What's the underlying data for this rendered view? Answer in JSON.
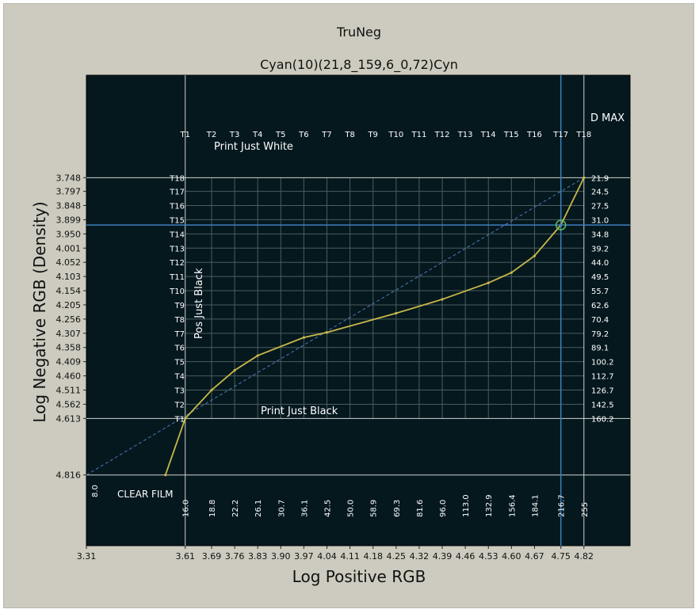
{
  "chart_data": {
    "type": "line",
    "suptitle": "TruNeg",
    "title": "Cyan(10)(21,8_159,6_0,72)Cyn",
    "xlabel": "Log Positive RGB",
    "ylabel": "Log Negative RGB (Density)",
    "xlim": [
      3.31,
      4.96
    ],
    "ylim": [
      5.07,
      3.38
    ],
    "x_ticks": [
      3.31,
      3.61,
      3.69,
      3.76,
      3.83,
      3.9,
      3.97,
      4.04,
      4.11,
      4.18,
      4.25,
      4.32,
      4.39,
      4.46,
      4.53,
      4.6,
      4.67,
      4.75,
      4.82
    ],
    "x_tick_labels": [
      "3.31",
      "3.61",
      "3.69",
      "3.76",
      "3.83",
      "3.90",
      "3.97",
      "4.04",
      "4.11",
      "4.18",
      "4.25",
      "4.32",
      "4.39",
      "4.46",
      "4.53",
      "4.60",
      "4.67",
      "4.75",
      "4.82"
    ],
    "y_ticks": [
      3.748,
      3.797,
      3.848,
      3.899,
      3.95,
      4.001,
      4.052,
      4.103,
      4.154,
      4.205,
      4.256,
      4.307,
      4.358,
      4.409,
      4.46,
      4.511,
      4.562,
      4.613,
      4.816
    ],
    "y_tick_labels": [
      "3.748",
      "3.797",
      "3.848",
      "3.899",
      "3.950",
      "4.001",
      "4.052",
      "4.103",
      "4.154",
      "4.205",
      "4.256",
      "4.307",
      "4.358",
      "4.409",
      "4.460",
      "4.511",
      "4.562",
      "4.613",
      "4.816"
    ],
    "t_labels": [
      "T1",
      "T2",
      "T3",
      "T4",
      "T5",
      "T6",
      "T7",
      "T8",
      "T9",
      "T10",
      "T11",
      "T12",
      "T13",
      "T14",
      "T15",
      "T16",
      "T17",
      "T18"
    ],
    "left_t_labels": [
      "T18",
      "T17",
      "T16",
      "T15",
      "T14",
      "T13",
      "T12",
      "T11",
      "T10",
      "T9",
      "T8",
      "T7",
      "T6",
      "T5",
      "T4",
      "T3",
      "T2",
      "T1"
    ],
    "right_values": [
      "21.9",
      "24.5",
      "27.5",
      "31.0",
      "34.8",
      "39.2",
      "44.0",
      "49.5",
      "55.7",
      "62.6",
      "70.4",
      "79.2",
      "89.1",
      "100.2",
      "112.7",
      "126.7",
      "142.5",
      "160.2"
    ],
    "bottom_values": [
      "16.0",
      "18.8",
      "22.2",
      "26.1",
      "30.7",
      "36.1",
      "42.5",
      "50.0",
      "58.9",
      "69.3",
      "81.6",
      "96.0",
      "113.0",
      "132.9",
      "156.4",
      "184.1",
      "216.7",
      "255"
    ],
    "clear_film_value": "8.0",
    "curve": {
      "name": "Cyan",
      "color": "#c8b84a",
      "x": [
        3.55,
        3.61,
        3.69,
        3.76,
        3.83,
        3.97,
        4.04,
        4.25,
        4.39,
        4.53,
        4.6,
        4.67,
        4.75,
        4.82
      ],
      "y": [
        4.816,
        4.613,
        4.511,
        4.44,
        4.387,
        4.322,
        4.304,
        4.235,
        4.185,
        4.126,
        4.089,
        4.029,
        3.918,
        3.748
      ]
    },
    "diagonal": {
      "x": [
        3.31,
        4.82
      ],
      "y": [
        4.816,
        3.748
      ],
      "color": "#4a7ab8",
      "style": "dashed"
    },
    "marker": {
      "x": 4.75,
      "y": 3.918,
      "color": "#5cbf5c"
    },
    "crosshair": {
      "x": 4.75,
      "y": 3.918,
      "color": "#3d7fbf"
    },
    "annotations": {
      "d_max": "D MAX",
      "print_just_white": "Print Just White",
      "print_just_black": "Print Just Black",
      "pos_just_black": "Pos Just Black",
      "clear_film": "CLEAR FILM"
    },
    "colors": {
      "plot_bg": "#05181e",
      "grid": "#4a5d60",
      "ref_lines": "#d0d4cc",
      "figure_bg": "#cdcbbf"
    }
  }
}
